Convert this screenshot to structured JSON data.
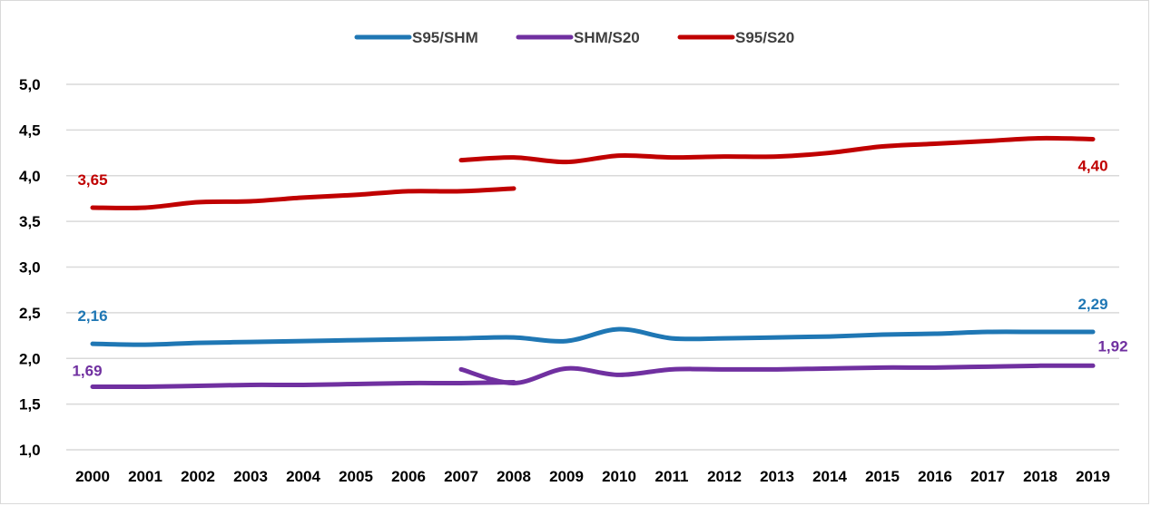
{
  "chart_data": {
    "type": "line",
    "title": "",
    "xlabel": "",
    "ylabel": "",
    "ylim": [
      1.0,
      5.0
    ],
    "y_ticks": [
      "1,0",
      "1,5",
      "2,0",
      "2,5",
      "3,0",
      "3,5",
      "4,0",
      "4,5",
      "5,0"
    ],
    "categories": [
      "2000",
      "2001",
      "2002",
      "2003",
      "2004",
      "2005",
      "2006",
      "2007",
      "2008",
      "2009",
      "2010",
      "2011",
      "2012",
      "2013",
      "2014",
      "2015",
      "2016",
      "2017",
      "2018",
      "2019"
    ],
    "grid": true,
    "legend_position": "top",
    "series": [
      {
        "name": "S95/SHM",
        "color": "#1f77b4",
        "segments": [
          {
            "x": [
              "2000",
              "2001",
              "2002",
              "2003",
              "2004",
              "2005",
              "2006",
              "2007",
              "2008",
              "2009",
              "2010",
              "2011",
              "2012",
              "2013",
              "2014",
              "2015",
              "2016",
              "2017",
              "2018",
              "2019"
            ],
            "values": [
              2.16,
              2.15,
              2.17,
              2.18,
              2.19,
              2.2,
              2.21,
              2.22,
              2.23,
              2.19,
              2.32,
              2.22,
              2.22,
              2.23,
              2.24,
              2.26,
              2.27,
              2.29,
              2.29,
              2.29
            ]
          }
        ],
        "labels": [
          {
            "x": "2000",
            "text": "2,16"
          },
          {
            "x": "2019",
            "text": "2,29"
          }
        ]
      },
      {
        "name": "SHM/S20",
        "color": "#7030a0",
        "segments": [
          {
            "x": [
              "2000",
              "2001",
              "2002",
              "2003",
              "2004",
              "2005",
              "2006",
              "2007",
              "2008"
            ],
            "values": [
              1.69,
              1.69,
              1.7,
              1.71,
              1.71,
              1.72,
              1.73,
              1.73,
              1.74
            ]
          },
          {
            "x": [
              "2007",
              "2008",
              "2009",
              "2010",
              "2011",
              "2012",
              "2013",
              "2014",
              "2015",
              "2016",
              "2017",
              "2018",
              "2019"
            ],
            "values": [
              1.88,
              1.73,
              1.89,
              1.82,
              1.88,
              1.88,
              1.88,
              1.89,
              1.9,
              1.9,
              1.91,
              1.92,
              1.92
            ]
          }
        ],
        "labels": [
          {
            "x": "2000",
            "text": "1,69"
          },
          {
            "x": "2019",
            "text": "1,92"
          }
        ]
      },
      {
        "name": "S95/S20",
        "color": "#c00000",
        "segments": [
          {
            "x": [
              "2000",
              "2001",
              "2002",
              "2003",
              "2004",
              "2005",
              "2006",
              "2007",
              "2008"
            ],
            "values": [
              3.65,
              3.65,
              3.71,
              3.72,
              3.76,
              3.79,
              3.83,
              3.83,
              3.86
            ]
          },
          {
            "x": [
              "2007",
              "2008",
              "2009",
              "2010",
              "2011",
              "2012",
              "2013",
              "2014",
              "2015",
              "2016",
              "2017",
              "2018",
              "2019"
            ],
            "values": [
              4.17,
              4.2,
              4.15,
              4.22,
              4.2,
              4.21,
              4.21,
              4.25,
              4.32,
              4.35,
              4.38,
              4.41,
              4.4
            ]
          }
        ],
        "labels": [
          {
            "x": "2000",
            "text": "3,65"
          },
          {
            "x": "2019",
            "text": "4,40"
          }
        ]
      }
    ]
  }
}
